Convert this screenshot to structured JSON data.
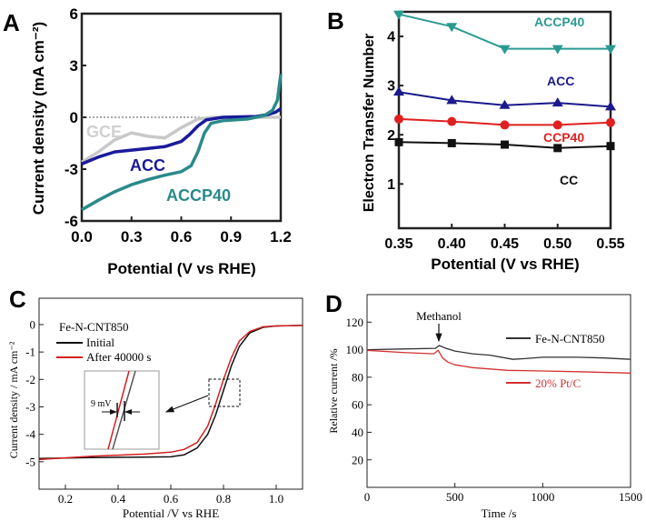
{
  "chart_data": [
    {
      "panel": "A",
      "type": "line",
      "xlabel": "Potential (V vs RHE)",
      "ylabel": "Current density (mA cm⁻²)",
      "xlim": [
        0,
        1.2
      ],
      "ylim": [
        -6,
        6
      ],
      "xticks": [
        "0.0",
        "0.3",
        "0.6",
        "0.9",
        "1.2"
      ],
      "yticks": [
        "-6",
        "-3",
        "0",
        "3",
        "6"
      ],
      "reference_line": {
        "y": 0,
        "style": "dotted"
      },
      "series": [
        {
          "name": "GCE",
          "color": "#c8c8c8",
          "x": [
            0,
            0.1,
            0.2,
            0.3,
            0.4,
            0.5,
            0.6,
            0.7,
            0.8,
            1.0,
            1.2
          ],
          "y": [
            -2.6,
            -2.0,
            -1.3,
            -0.9,
            -1.1,
            -1.2,
            -0.6,
            -0.1,
            0,
            0,
            0
          ]
        },
        {
          "name": "ACC",
          "color": "#1a1a9c",
          "x": [
            0,
            0.1,
            0.2,
            0.3,
            0.4,
            0.5,
            0.6,
            0.65,
            0.7,
            0.75,
            0.85,
            1.05,
            1.12,
            1.17,
            1.2
          ],
          "y": [
            -2.7,
            -2.3,
            -2.0,
            -1.9,
            -1.8,
            -1.7,
            -1.4,
            -1.0,
            -0.5,
            -0.15,
            0,
            0.05,
            0.15,
            0.3,
            0.5
          ]
        },
        {
          "name": "ACCP40",
          "color": "#2a8a8a",
          "x": [
            0,
            0.1,
            0.2,
            0.3,
            0.4,
            0.5,
            0.6,
            0.66,
            0.7,
            0.74,
            0.78,
            0.85,
            1.0,
            1.1,
            1.15,
            1.18,
            1.2
          ],
          "y": [
            -5.35,
            -4.8,
            -4.3,
            -3.9,
            -3.6,
            -3.35,
            -3.15,
            -2.8,
            -2.0,
            -0.9,
            -0.35,
            -0.2,
            -0.1,
            0.1,
            0.4,
            1.0,
            2.5
          ]
        }
      ]
    },
    {
      "panel": "B",
      "type": "line",
      "xlabel": "Potential (V vs RHE)",
      "ylabel": "Electron Transfer Number",
      "xlim": [
        0.35,
        0.55
      ],
      "ylim": [
        0.1,
        4.5
      ],
      "xticks": [
        "0.35",
        "0.40",
        "0.45",
        "0.50",
        "0.55"
      ],
      "yticks": [
        "1",
        "2",
        "3",
        "4"
      ],
      "x": [
        0.35,
        0.4,
        0.45,
        0.5,
        0.55
      ],
      "series": [
        {
          "name": "ACCP40",
          "color": "#2a9a90",
          "marker": "triangle-down",
          "values": [
            4.45,
            4.2,
            3.75,
            3.75,
            3.75
          ]
        },
        {
          "name": "ACC",
          "color": "#1a1a8c",
          "marker": "triangle-up",
          "values": [
            2.87,
            2.7,
            2.6,
            2.65,
            2.57
          ]
        },
        {
          "name": "CCP40",
          "color": "#e02020",
          "marker": "circle",
          "values": [
            2.32,
            2.27,
            2.2,
            2.2,
            2.25
          ]
        },
        {
          "name": "CC",
          "color": "#111111",
          "marker": "square",
          "values": [
            1.85,
            1.83,
            1.8,
            1.73,
            1.77
          ]
        }
      ]
    },
    {
      "panel": "C",
      "type": "line",
      "xlabel": "Potential /V vs RHE",
      "ylabel": "Current density / mA cm⁻²",
      "xlim": [
        0.1,
        1.1
      ],
      "ylim": [
        -6,
        0.96
      ],
      "xticks": [
        "0.2",
        "0.4",
        "0.6",
        "0.8",
        "1.0"
      ],
      "yticks": [
        "0",
        "-1",
        "-2",
        "-3",
        "-4",
        "-5"
      ],
      "legend_title": "Fe-N-CNT850",
      "annotation": "9 mV",
      "series": [
        {
          "name": "Initial",
          "color": "#111111",
          "x": [
            0.1,
            0.3,
            0.5,
            0.6,
            0.65,
            0.7,
            0.74,
            0.77,
            0.8,
            0.83,
            0.86,
            0.9,
            0.95,
            1.0,
            1.1
          ],
          "y": [
            -4.88,
            -4.85,
            -4.83,
            -4.82,
            -4.75,
            -4.5,
            -4.0,
            -3.3,
            -2.4,
            -1.5,
            -0.8,
            -0.3,
            -0.1,
            -0.05,
            -0.03
          ]
        },
        {
          "name": "After 40000 s",
          "color": "#d42020",
          "x": [
            0.1,
            0.3,
            0.5,
            0.6,
            0.65,
            0.7,
            0.74,
            0.77,
            0.8,
            0.83,
            0.86,
            0.9,
            0.95,
            1.0,
            1.1
          ],
          "y": [
            -4.92,
            -4.8,
            -4.72,
            -4.65,
            -4.55,
            -4.3,
            -3.7,
            -2.9,
            -2.0,
            -1.2,
            -0.6,
            -0.25,
            -0.08,
            -0.05,
            -0.03
          ]
        }
      ]
    },
    {
      "panel": "D",
      "type": "line",
      "xlabel": "Time /s",
      "ylabel": "Relative current /%",
      "xlim": [
        0,
        1500
      ],
      "ylim": [
        0,
        140
      ],
      "xticks": [
        "0",
        "500",
        "1000",
        "1500"
      ],
      "yticks": [
        "20",
        "40",
        "60",
        "80",
        "100",
        "120"
      ],
      "annotation": "Methanol",
      "series": [
        {
          "name": "Fe-N-CNT850",
          "color": "#333333",
          "x": [
            0,
            200,
            390,
            410,
            450,
            500,
            600,
            700,
            830,
            900,
            1000,
            1200,
            1350,
            1500
          ],
          "y": [
            100,
            100.5,
            101,
            103,
            101,
            99,
            97,
            96,
            93,
            93.5,
            94.5,
            94.5,
            94,
            93
          ]
        },
        {
          "name": "20% Pt/C",
          "color": "#d43030",
          "x": [
            0,
            200,
            380,
            405,
            430,
            460,
            500,
            600,
            800,
            1000,
            1200,
            1500
          ],
          "y": [
            99.5,
            98,
            97,
            99.5,
            94,
            91,
            89,
            87,
            85,
            84.5,
            84,
            83
          ]
        }
      ]
    }
  ]
}
